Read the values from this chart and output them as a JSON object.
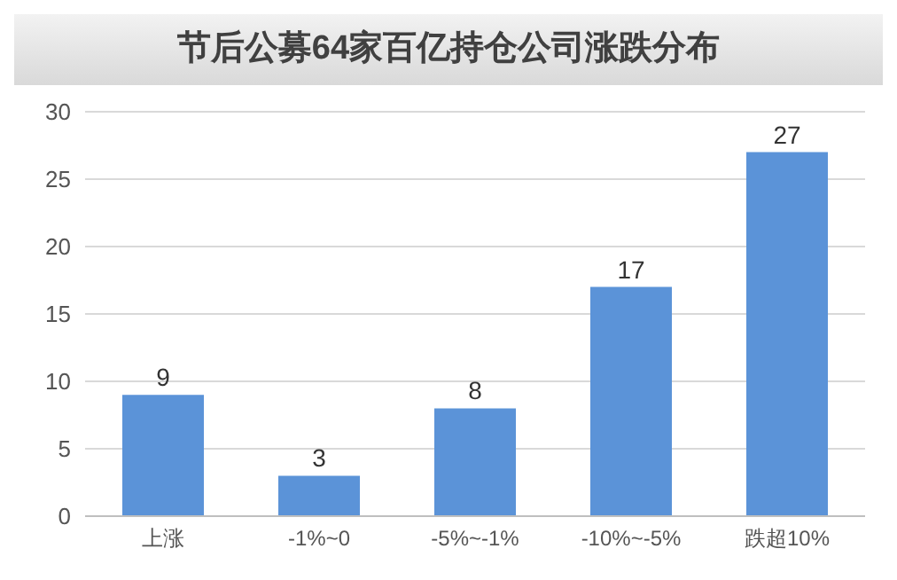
{
  "chart_data": {
    "type": "bar",
    "title": "节后公募64家百亿持仓公司涨跌分布",
    "categories": [
      "上涨",
      "-1%~0",
      "-5%~-1%",
      "-10%~-5%",
      "跌超10%"
    ],
    "values": [
      9,
      3,
      8,
      17,
      27
    ],
    "color": "#5b93d8",
    "ylim": [
      0,
      30
    ],
    "yticks": [
      0,
      5,
      10,
      15,
      20,
      25,
      30
    ],
    "grid": "y",
    "data_labels": true
  }
}
